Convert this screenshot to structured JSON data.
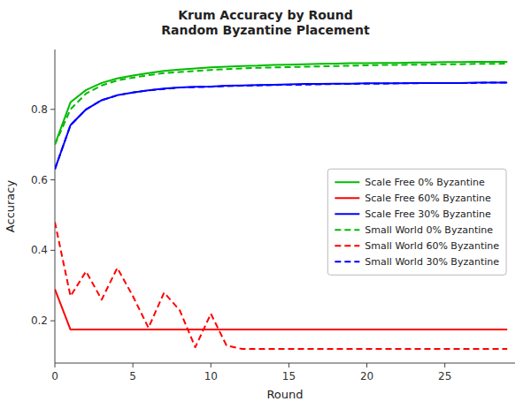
{
  "chart_data": {
    "type": "line",
    "title": "Krum Accuracy by Round\nRandom Byzantine Placement",
    "x_label": "Round",
    "y_label": "Accuracy",
    "x": [
      0,
      1,
      2,
      3,
      4,
      5,
      6,
      7,
      8,
      9,
      10,
      11,
      12,
      13,
      14,
      15,
      16,
      17,
      18,
      19,
      20,
      21,
      22,
      23,
      24,
      25,
      26,
      27,
      28,
      29
    ],
    "series": [
      {
        "name": "Scale Free 0% Byzantine",
        "color": "#00bb00",
        "line_style": "solid",
        "values": [
          0.7,
          0.82,
          0.855,
          0.875,
          0.888,
          0.896,
          0.903,
          0.909,
          0.913,
          0.916,
          0.919,
          0.921,
          0.923,
          0.924,
          0.926,
          0.927,
          0.928,
          0.929,
          0.93,
          0.931,
          0.931,
          0.932,
          0.932,
          0.933,
          0.933,
          0.934,
          0.934,
          0.935,
          0.935,
          0.935
        ]
      },
      {
        "name": "Scale Free 60% Byzantine",
        "color": "#ff0000",
        "line_style": "solid",
        "values": [
          0.29,
          0.175,
          0.175,
          0.175,
          0.175,
          0.175,
          0.175,
          0.175,
          0.175,
          0.175,
          0.175,
          0.175,
          0.175,
          0.175,
          0.175,
          0.175,
          0.175,
          0.175,
          0.175,
          0.175,
          0.175,
          0.175,
          0.175,
          0.175,
          0.175,
          0.175,
          0.175,
          0.175,
          0.175,
          0.175
        ]
      },
      {
        "name": "Scale Free 30% Byzantine",
        "color": "#0000ff",
        "line_style": "solid",
        "values": [
          0.63,
          0.755,
          0.8,
          0.826,
          0.84,
          0.848,
          0.854,
          0.859,
          0.862,
          0.864,
          0.865,
          0.867,
          0.868,
          0.869,
          0.87,
          0.871,
          0.872,
          0.872,
          0.873,
          0.873,
          0.874,
          0.874,
          0.874,
          0.875,
          0.875,
          0.875,
          0.875,
          0.876,
          0.876,
          0.876
        ]
      },
      {
        "name": "Small World 0% Byzantine",
        "color": "#00bb00",
        "line_style": "dashed",
        "values": [
          0.7,
          0.8,
          0.845,
          0.868,
          0.882,
          0.89,
          0.897,
          0.903,
          0.906,
          0.909,
          0.912,
          0.914,
          0.916,
          0.918,
          0.919,
          0.92,
          0.921,
          0.922,
          0.923,
          0.924,
          0.925,
          0.926,
          0.926,
          0.927,
          0.927,
          0.928,
          0.928,
          0.929,
          0.929,
          0.93
        ]
      },
      {
        "name": "Small World 60% Byzantine",
        "color": "#ff0000",
        "line_style": "dashed",
        "values": [
          0.48,
          0.27,
          0.34,
          0.26,
          0.35,
          0.27,
          0.18,
          0.28,
          0.23,
          0.125,
          0.22,
          0.13,
          0.12,
          0.12,
          0.12,
          0.12,
          0.12,
          0.12,
          0.12,
          0.12,
          0.12,
          0.12,
          0.12,
          0.12,
          0.12,
          0.12,
          0.12,
          0.12,
          0.12,
          0.12
        ]
      },
      {
        "name": "Small World 30% Byzantine",
        "color": "#0000ff",
        "line_style": "dashed",
        "values": [
          0.63,
          0.755,
          0.8,
          0.826,
          0.84,
          0.848,
          0.854,
          0.858,
          0.862,
          0.863,
          0.864,
          0.866,
          0.867,
          0.868,
          0.869,
          0.87,
          0.87,
          0.871,
          0.872,
          0.872,
          0.873,
          0.873,
          0.874,
          0.874,
          0.875,
          0.875,
          0.875,
          0.875,
          0.876,
          0.876
        ]
      }
    ],
    "xlim": [
      0,
      29.5
    ],
    "ylim": [
      0.08,
      0.97
    ],
    "xticks": [
      0,
      5,
      10,
      15,
      20,
      25
    ],
    "yticks": [
      0.2,
      0.4,
      0.6,
      0.8
    ],
    "grid": false,
    "legend": "right"
  }
}
